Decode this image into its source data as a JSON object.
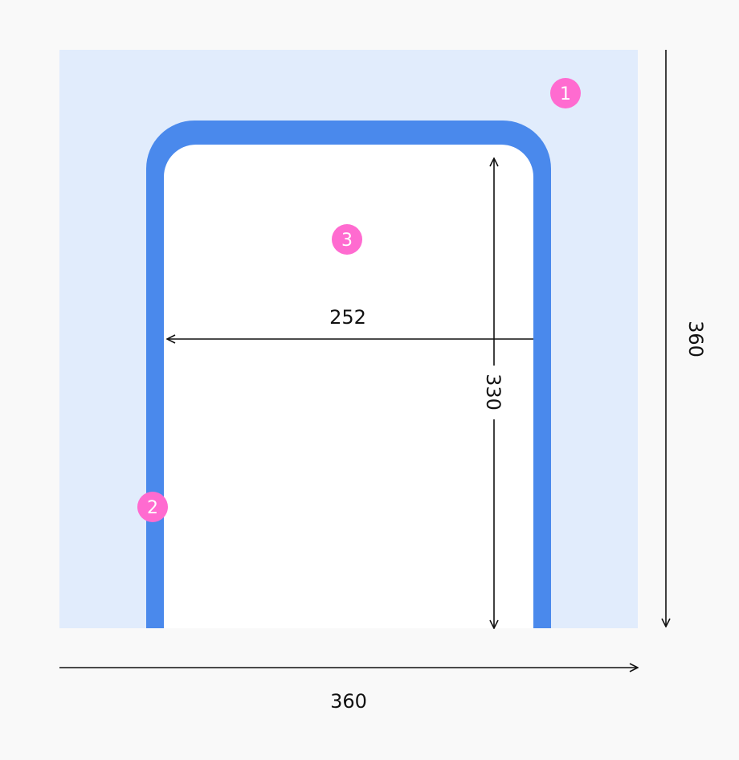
{
  "colors": {
    "background": "#f9f9f9",
    "area": "#e1ecfc",
    "frame": "#4a89ec",
    "inner": "#ffffff",
    "badge": "#ff6bd0",
    "line": "#111111"
  },
  "dimensions": {
    "total_width": "360",
    "total_height": "360",
    "inner_width": "252",
    "inner_height": "330"
  },
  "badges": [
    "1",
    "2",
    "3"
  ]
}
